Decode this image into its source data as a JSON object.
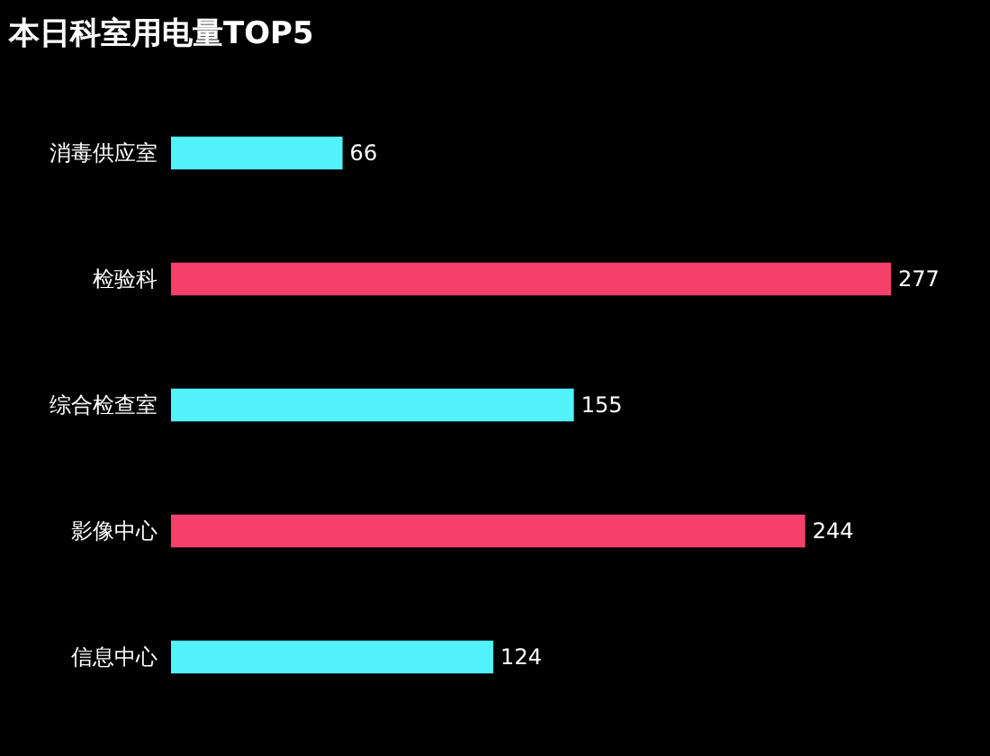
{
  "chart_data": {
    "type": "bar",
    "orientation": "horizontal",
    "title": "本日科室用电量TOP5",
    "categories": [
      "消毒供应室",
      "检验科",
      "综合检查室",
      "影像中心",
      "信息中心"
    ],
    "values": [
      66,
      277,
      155,
      244,
      124
    ],
    "colors": [
      "#52f2fb",
      "#f5406b",
      "#52f2fb",
      "#f5406b",
      "#52f2fb"
    ],
    "data_labels": true
  }
}
